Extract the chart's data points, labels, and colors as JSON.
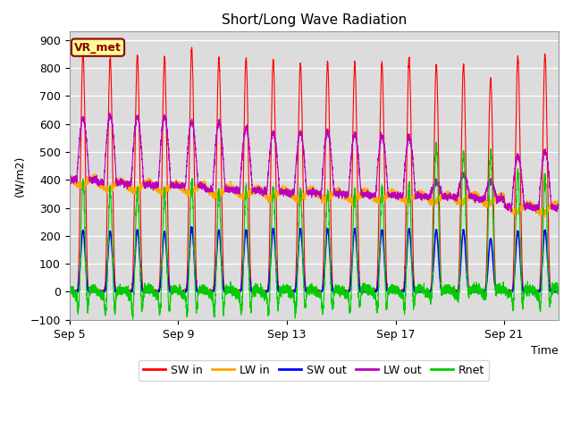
{
  "title": "Short/Long Wave Radiation",
  "ylabel": "(W/m2)",
  "xlabel": "Time",
  "ylim": [
    -100,
    930
  ],
  "yticks": [
    -100,
    0,
    100,
    200,
    300,
    400,
    500,
    600,
    700,
    800,
    900
  ],
  "annotation": "VR_met",
  "background_color": "#dcdcdc",
  "figure_background": "#ffffff",
  "grid_color": "#ffffff",
  "line_colors": {
    "SW_in": "#ff0000",
    "LW_in": "#ffa500",
    "SW_out": "#0000ff",
    "LW_out": "#bb00bb",
    "Rnet": "#00cc00"
  },
  "legend_labels": [
    "SW in",
    "LW in",
    "SW out",
    "LW out",
    "Rnet"
  ],
  "n_days": 18,
  "start_day": 5,
  "xtick_days": [
    5,
    9,
    13,
    17,
    21
  ],
  "xtick_labels": [
    "Sep 5",
    "Sep 9",
    "Sep 13",
    "Sep 17",
    "Sep 21"
  ]
}
